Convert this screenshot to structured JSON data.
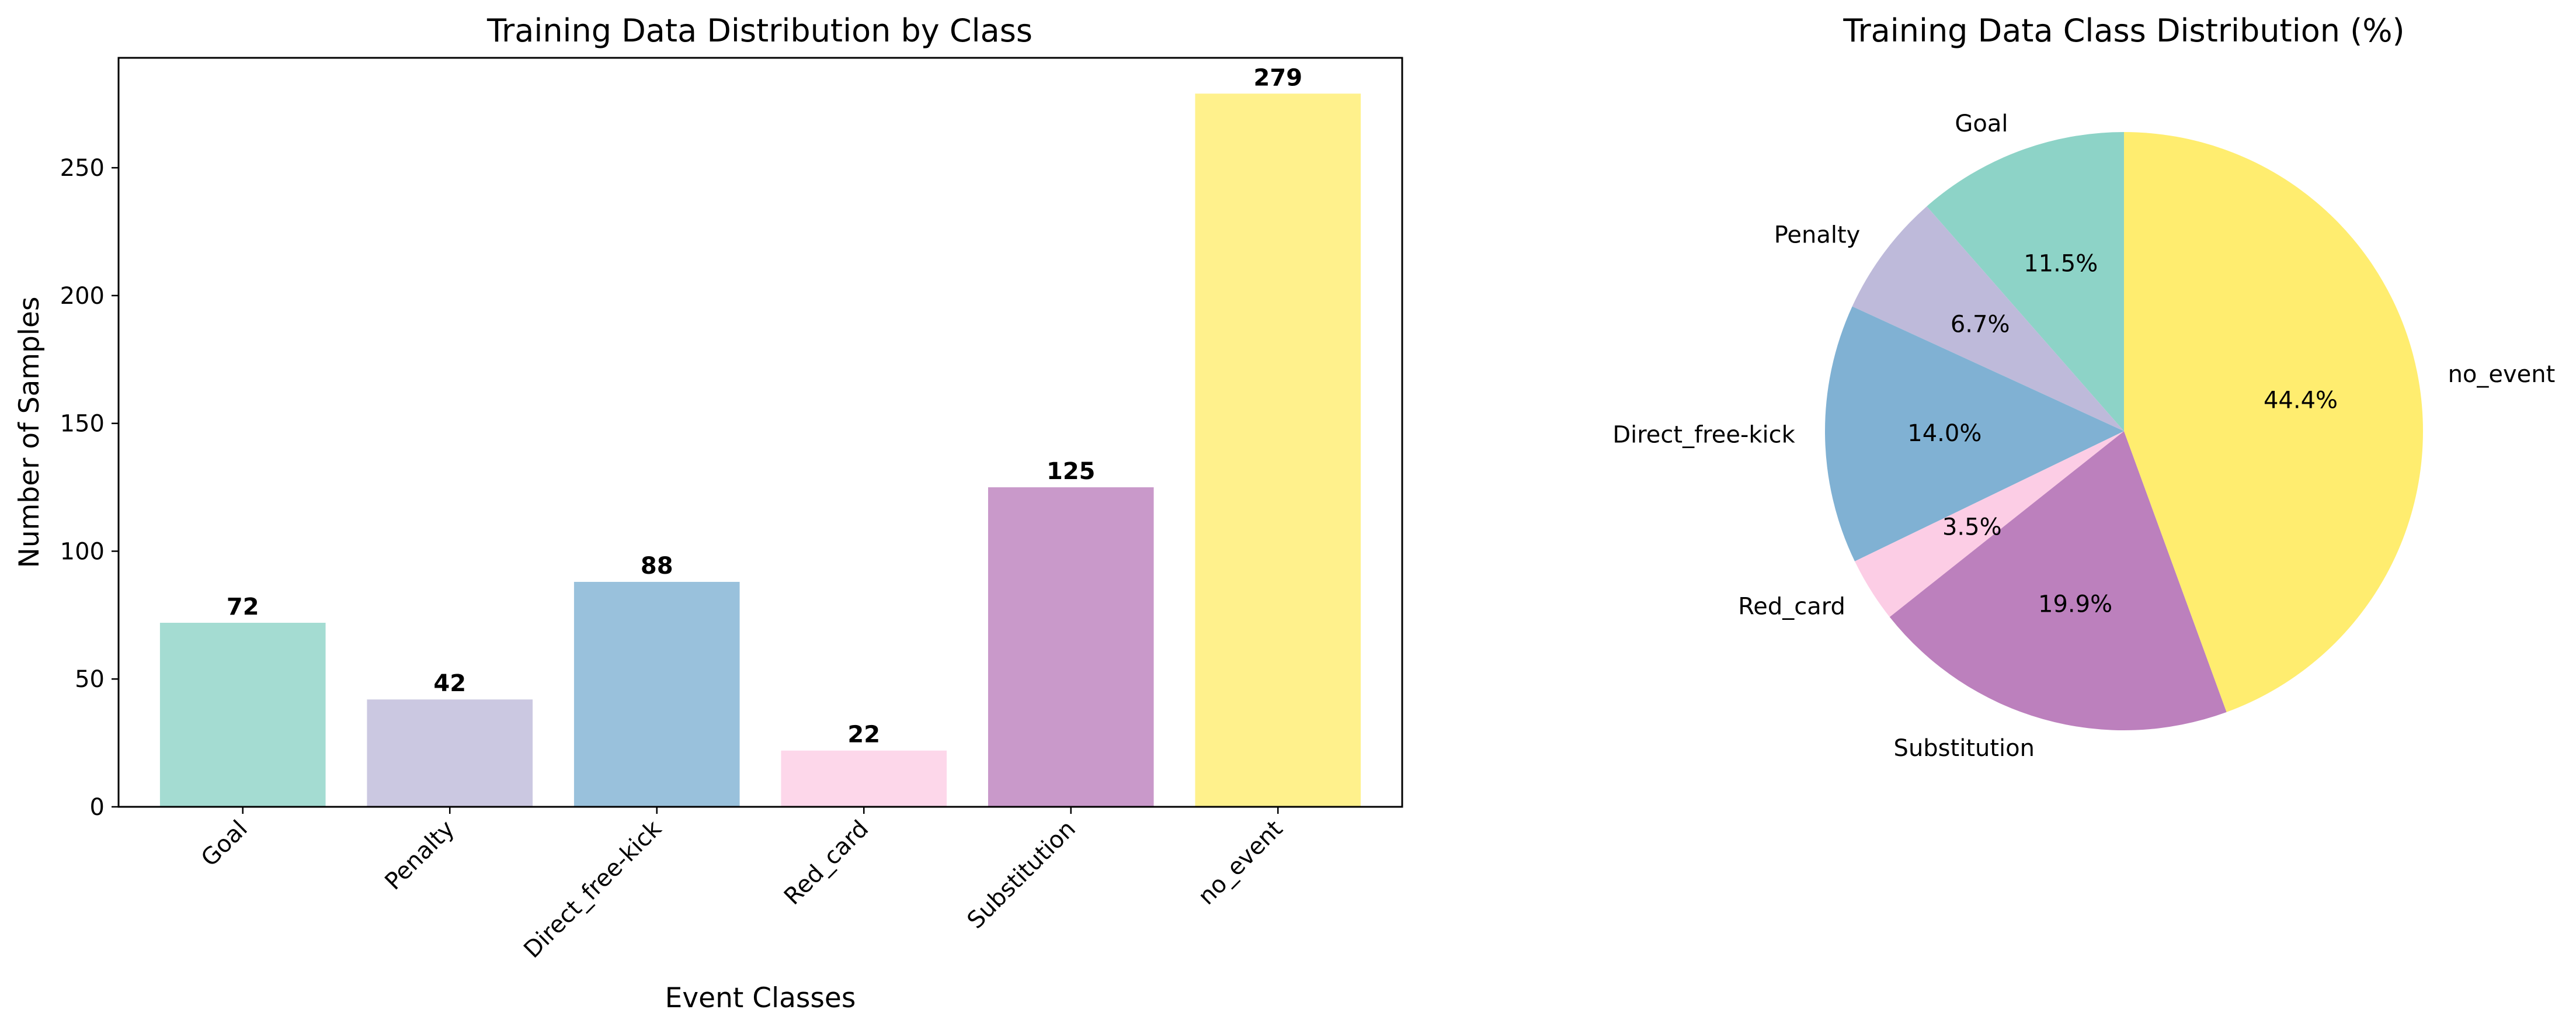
{
  "chart_data": [
    {
      "type": "bar",
      "title": "Training Data Distribution by Class",
      "xlabel": "Event Classes",
      "ylabel": "Number of Samples",
      "categories": [
        "Goal",
        "Penalty",
        "Direct_free-kick",
        "Red_card",
        "Substitution",
        "no_event"
      ],
      "values": [
        72,
        42,
        88,
        22,
        125,
        279
      ],
      "data_labels": [
        "72",
        "42",
        "88",
        "22",
        "125",
        "279"
      ],
      "ylim": [
        0,
        293
      ],
      "yticks": [
        0,
        50,
        100,
        150,
        200,
        250
      ],
      "ytick_labels": [
        "0",
        "50",
        "100",
        "150",
        "200",
        "250"
      ],
      "xtick_rotation": 45,
      "grid": false,
      "colors": [
        "#8dd3c7",
        "#bebada",
        "#80b1d3",
        "#fccde5",
        "#bc80bd",
        "#ffed6f"
      ],
      "bar_alpha": 0.8
    },
    {
      "type": "pie",
      "title": "Training Data Class Distribution (%)",
      "labels": [
        "Goal",
        "Penalty",
        "Direct_free-kick",
        "Red_card",
        "Substitution",
        "no_event"
      ],
      "values": [
        72,
        42,
        88,
        22,
        125,
        279
      ],
      "percent_labels": [
        "11.5%",
        "6.7%",
        "14.0%",
        "3.5%",
        "19.9%",
        "44.4%"
      ],
      "start_angle_deg": 90,
      "direction": "counterclockwise",
      "colors": [
        "#8dd3c7",
        "#bebada",
        "#80b1d3",
        "#fccde5",
        "#bc80bd",
        "#ffed6f"
      ]
    }
  ]
}
